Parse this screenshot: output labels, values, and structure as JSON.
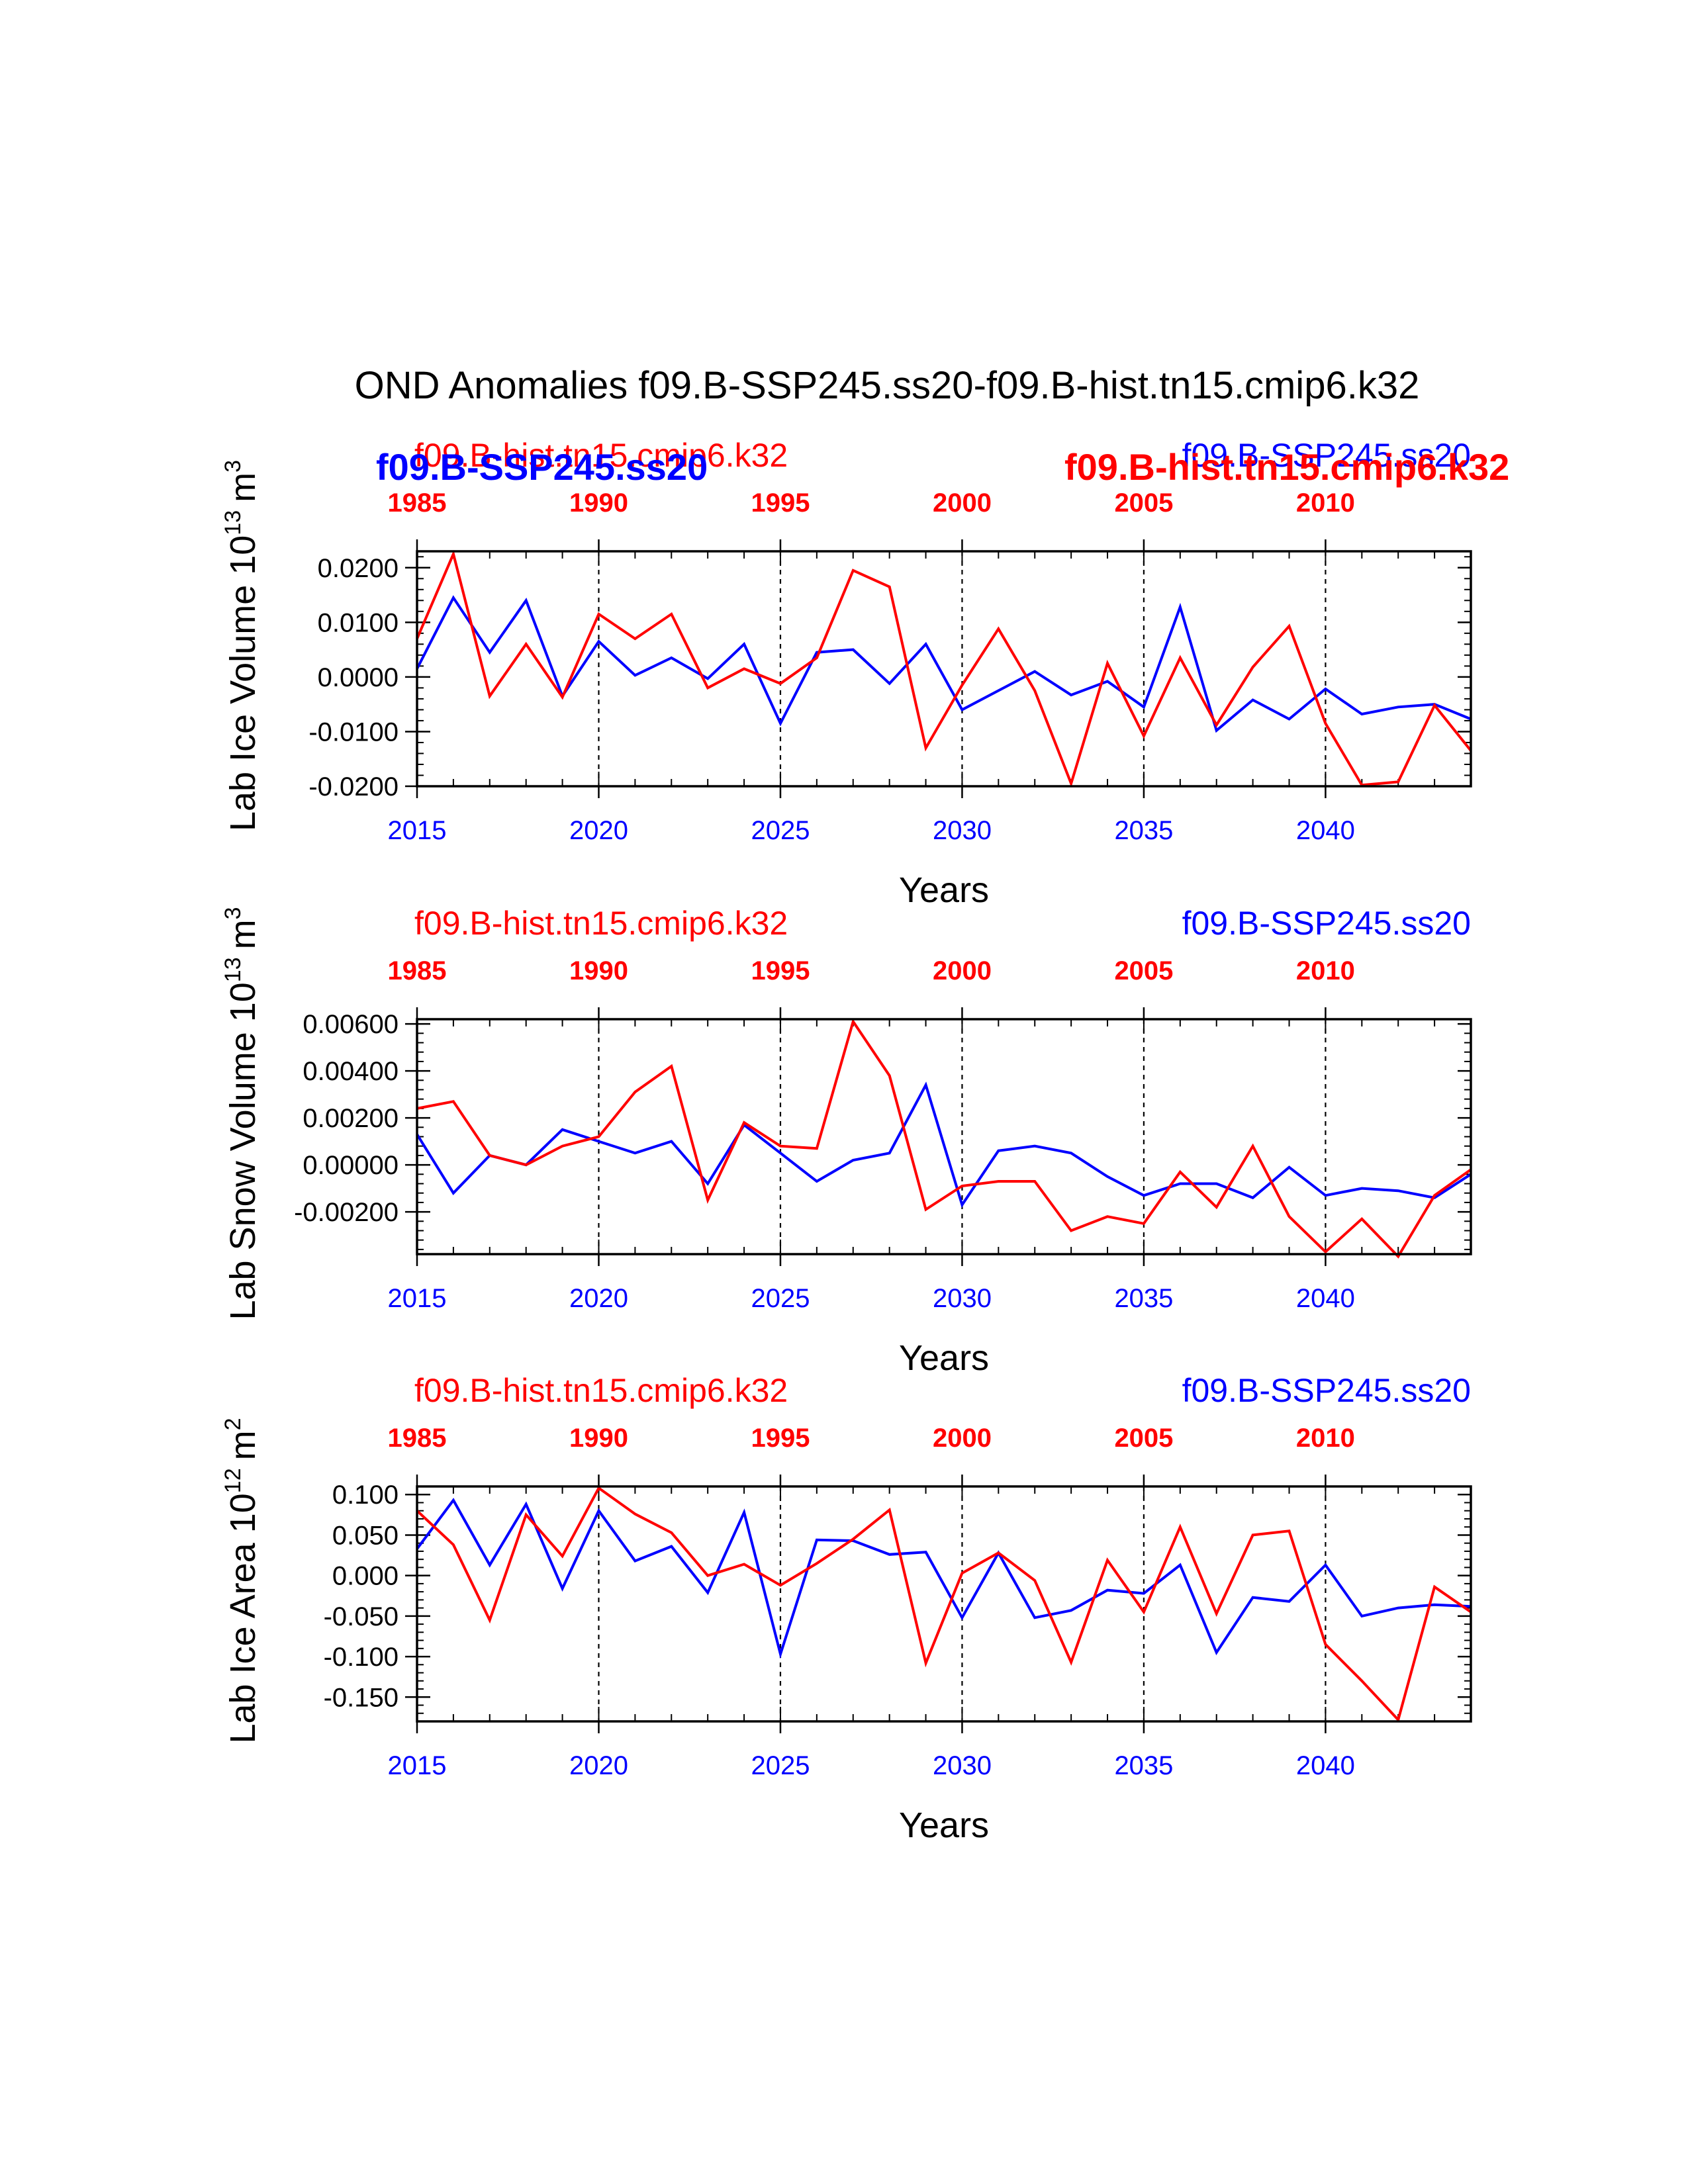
{
  "page_title": "OND Anomalies f09.B-SSP245.ss20-f09.B-hist.tn15.cmip6.k32",
  "colors": {
    "ssp": "#0000ff",
    "hist": "#ff0000",
    "axis": "#000000"
  },
  "chart_data": [
    {
      "type": "line",
      "title": "",
      "ylabel_main": "Lab Ice Volume 10",
      "ylabel_exp": "13",
      "ylabel_unit": "m",
      "ylabel_unit_exp": "3",
      "xlabel": "Years",
      "ylim": [
        -0.02,
        0.023
      ],
      "yticks": [
        -0.02,
        -0.01,
        0.0,
        0.01,
        0.02
      ],
      "ytick_labels": [
        "-0.0200",
        "-0.0100",
        "0.0000",
        "0.0100",
        "0.0200"
      ],
      "ytick_minor_step": 0.002,
      "x_bottom_ticks": [
        2015,
        2020,
        2025,
        2030,
        2035,
        2040
      ],
      "x_bottom_labels": [
        "2015",
        "2020",
        "2025",
        "2030",
        "2035",
        "2040"
      ],
      "x_top_labels": [
        "1985",
        "1990",
        "1995",
        "2000",
        "2005",
        "2010"
      ],
      "xlim": [
        2015,
        2044
      ],
      "grid_x": [
        2020,
        2025,
        2030,
        2035,
        2040
      ],
      "legend_hist_left": "f09.B-hist.tn15.cmip6.k32",
      "legend_ssp_right": "f09.B-SSP245.ss20",
      "overlay_bold_ssp": "f09.B-SSP245.ss20",
      "overlay_bold_hist": "f09.B-hist.tn15.cmip6.k32",
      "x": [
        2015,
        2016,
        2017,
        2018,
        2019,
        2020,
        2021,
        2022,
        2023,
        2024,
        2025,
        2026,
        2027,
        2028,
        2029,
        2030,
        2031,
        2032,
        2033,
        2034,
        2035,
        2036,
        2037,
        2038,
        2039,
        2040,
        2041,
        2042,
        2043,
        2044
      ],
      "series": [
        {
          "name": "f09.B-SSP245.ss20",
          "color": "#0000ff",
          "values": [
            0.0015,
            0.0145,
            0.0045,
            0.014,
            -0.0035,
            0.0065,
            0.0003,
            0.0035,
            -0.0003,
            0.006,
            -0.0085,
            0.0045,
            0.005,
            -0.0012,
            0.006,
            -0.006,
            -0.0025,
            0.001,
            -0.0033,
            -0.0008,
            -0.0055,
            0.0128,
            -0.0098,
            -0.0042,
            -0.0077,
            -0.0022,
            -0.0068,
            -0.0055,
            -0.005,
            -0.0077
          ]
        },
        {
          "name": "f09.B-hist.tn15.cmip6.k32",
          "color": "#ff0000",
          "values": [
            0.007,
            0.0225,
            -0.0035,
            0.006,
            -0.0037,
            0.0115,
            0.007,
            0.0115,
            -0.002,
            0.0015,
            -0.0012,
            0.0035,
            0.0195,
            0.0165,
            -0.013,
            -0.0015,
            0.0088,
            -0.0025,
            -0.0195,
            0.0025,
            -0.0108,
            0.0035,
            -0.0088,
            0.0018,
            0.0093,
            -0.0085,
            -0.0198,
            -0.0192,
            -0.0052,
            -0.0135
          ]
        }
      ]
    },
    {
      "type": "line",
      "title": "",
      "ylabel_main": "Lab Snow Volume 10",
      "ylabel_exp": "13",
      "ylabel_unit": "m",
      "ylabel_unit_exp": "3",
      "xlabel": "Years",
      "ylim": [
        -0.0038,
        0.0062
      ],
      "yticks": [
        -0.002,
        0.0,
        0.002,
        0.004,
        0.006
      ],
      "ytick_labels": [
        "-0.00200",
        "0.00000",
        "0.00200",
        "0.00400",
        "0.00600"
      ],
      "ytick_minor_step": 0.0004,
      "x_bottom_ticks": [
        2015,
        2020,
        2025,
        2030,
        2035,
        2040
      ],
      "x_bottom_labels": [
        "2015",
        "2020",
        "2025",
        "2030",
        "2035",
        "2040"
      ],
      "x_top_labels": [
        "1985",
        "1990",
        "1995",
        "2000",
        "2005",
        "2010"
      ],
      "xlim": [
        2015,
        2044
      ],
      "grid_x": [
        2020,
        2025,
        2030,
        2035,
        2040
      ],
      "legend_hist_left": "f09.B-hist.tn15.cmip6.k32",
      "legend_ssp_right": "f09.B-SSP245.ss20",
      "x": [
        2015,
        2016,
        2017,
        2018,
        2019,
        2020,
        2021,
        2022,
        2023,
        2024,
        2025,
        2026,
        2027,
        2028,
        2029,
        2030,
        2031,
        2032,
        2033,
        2034,
        2035,
        2036,
        2037,
        2038,
        2039,
        2040,
        2041,
        2042,
        2043,
        2044
      ],
      "series": [
        {
          "name": "f09.B-SSP245.ss20",
          "color": "#0000ff",
          "values": [
            0.0013,
            -0.0012,
            0.0004,
            0.0,
            0.0015,
            0.001,
            0.0005,
            0.001,
            -0.0008,
            0.0017,
            0.0005,
            -0.0007,
            0.0002,
            0.0005,
            0.0034,
            -0.0017,
            0.0006,
            0.0008,
            0.0005,
            -0.0005,
            -0.0013,
            -0.0008,
            -0.0008,
            -0.0014,
            -0.0001,
            -0.0013,
            -0.001,
            -0.0011,
            -0.0014,
            -0.0004
          ]
        },
        {
          "name": "f09.B-hist.tn15.cmip6.k32",
          "color": "#ff0000",
          "values": [
            0.0024,
            0.0027,
            0.0004,
            0.0,
            0.0008,
            0.0012,
            0.0031,
            0.0042,
            -0.0015,
            0.0018,
            0.0008,
            0.0007,
            0.0061,
            0.0038,
            -0.0019,
            -0.0009,
            -0.0007,
            -0.0007,
            -0.0028,
            -0.0022,
            -0.0025,
            -0.0003,
            -0.0018,
            0.0008,
            -0.0022,
            -0.0037,
            -0.0023,
            -0.0039,
            -0.0013,
            -0.0002
          ]
        }
      ]
    },
    {
      "type": "line",
      "title": "",
      "ylabel_main": "Lab Ice Area 10",
      "ylabel_exp": "12",
      "ylabel_unit": "m",
      "ylabel_unit_exp": "2",
      "xlabel": "Years",
      "ylim": [
        -0.18,
        0.11
      ],
      "yticks": [
        -0.15,
        -0.1,
        -0.05,
        0.0,
        0.05,
        0.1
      ],
      "ytick_labels": [
        "-0.150",
        "-0.100",
        "-0.050",
        "0.000",
        "0.050",
        "0.100"
      ],
      "ytick_minor_step": 0.01,
      "x_bottom_ticks": [
        2015,
        2020,
        2025,
        2030,
        2035,
        2040
      ],
      "x_bottom_labels": [
        "2015",
        "2020",
        "2025",
        "2030",
        "2035",
        "2040"
      ],
      "x_top_labels": [
        "1985",
        "1990",
        "1995",
        "2000",
        "2005",
        "2010"
      ],
      "xlim": [
        2015,
        2044
      ],
      "grid_x": [
        2020,
        2025,
        2030,
        2035,
        2040
      ],
      "legend_hist_left": "f09.B-hist.tn15.cmip6.k32",
      "legend_ssp_right": "f09.B-SSP245.ss20",
      "x": [
        2015,
        2016,
        2017,
        2018,
        2019,
        2020,
        2021,
        2022,
        2023,
        2024,
        2025,
        2026,
        2027,
        2028,
        2029,
        2030,
        2031,
        2032,
        2033,
        2034,
        2035,
        2036,
        2037,
        2038,
        2039,
        2040,
        2041,
        2042,
        2043,
        2044
      ],
      "series": [
        {
          "name": "f09.B-SSP245.ss20",
          "color": "#0000ff",
          "values": [
            0.033,
            0.093,
            0.013,
            0.088,
            -0.016,
            0.08,
            0.018,
            0.036,
            -0.021,
            0.078,
            -0.097,
            0.044,
            0.043,
            0.026,
            0.029,
            -0.052,
            0.028,
            -0.052,
            -0.043,
            -0.018,
            -0.022,
            0.013,
            -0.095,
            -0.027,
            -0.032,
            0.013,
            -0.05,
            -0.04,
            -0.036,
            -0.038
          ]
        },
        {
          "name": "f09.B-hist.tn15.cmip6.k32",
          "color": "#ff0000",
          "values": [
            0.08,
            0.038,
            -0.055,
            0.075,
            0.024,
            0.108,
            0.076,
            0.053,
            0.0,
            0.014,
            -0.012,
            0.015,
            0.045,
            0.081,
            -0.108,
            0.003,
            0.028,
            -0.006,
            -0.107,
            0.019,
            -0.045,
            0.06,
            -0.047,
            0.05,
            0.055,
            -0.085,
            -0.13,
            -0.178,
            -0.014,
            -0.045
          ]
        }
      ]
    }
  ]
}
